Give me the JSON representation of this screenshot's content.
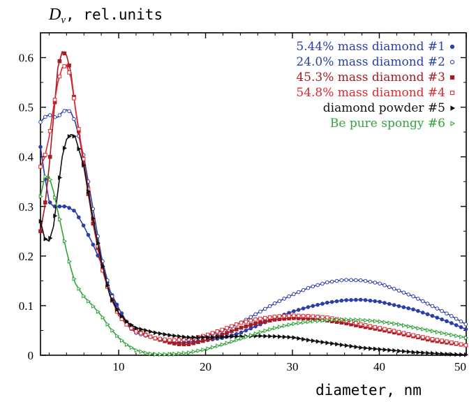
{
  "chart_data": {
    "type": "line",
    "y_var": "D",
    "y_var_sub": "v",
    "ylabel_rest": ", rel.units",
    "xlabel": "diameter, nm",
    "xlim": [
      1,
      50
    ],
    "ylim": [
      0,
      0.65
    ],
    "x_ticks": [
      10,
      20,
      30,
      40,
      50
    ],
    "y_ticks": [
      0,
      0.1,
      0.2,
      0.3,
      0.4,
      0.5,
      0.6
    ],
    "y_tick_labels": [
      "0",
      "0.1",
      "0.2",
      "0.3",
      "0.4",
      "0.5",
      "0.6"
    ],
    "legend_position": "top-right",
    "series": [
      {
        "name": "5.44% mass diamond #1",
        "color": "#2a3fa8",
        "marker": "filled-circle",
        "points": [
          [
            1,
            0.42
          ],
          [
            1.5,
            0.36
          ],
          [
            2,
            0.31
          ],
          [
            2.5,
            0.3
          ],
          [
            3,
            0.3
          ],
          [
            3.5,
            0.3
          ],
          [
            4,
            0.3
          ],
          [
            4.5,
            0.295
          ],
          [
            5,
            0.29
          ],
          [
            5.5,
            0.275
          ],
          [
            6,
            0.26
          ],
          [
            7,
            0.225
          ],
          [
            8,
            0.185
          ],
          [
            9,
            0.13
          ],
          [
            10,
            0.095
          ],
          [
            11,
            0.065
          ],
          [
            12,
            0.05
          ],
          [
            13,
            0.04
          ],
          [
            14,
            0.035
          ],
          [
            15,
            0.03
          ],
          [
            16,
            0.027
          ],
          [
            17,
            0.025
          ],
          [
            18,
            0.026
          ],
          [
            20,
            0.03
          ],
          [
            22,
            0.035
          ],
          [
            24,
            0.045
          ],
          [
            26,
            0.06
          ],
          [
            28,
            0.075
          ],
          [
            30,
            0.088
          ],
          [
            32,
            0.098
          ],
          [
            34,
            0.106
          ],
          [
            36,
            0.111
          ],
          [
            38,
            0.112
          ],
          [
            40,
            0.108
          ],
          [
            42,
            0.1
          ],
          [
            44,
            0.092
          ],
          [
            46,
            0.08
          ],
          [
            48,
            0.067
          ],
          [
            50,
            0.052
          ]
        ]
      },
      {
        "name": "24.0% mass diamond #2",
        "color": "#2a3fa8",
        "marker": "open-circle",
        "points": [
          [
            1,
            0.47
          ],
          [
            1.5,
            0.48
          ],
          [
            2,
            0.485
          ],
          [
            2.5,
            0.48
          ],
          [
            3,
            0.48
          ],
          [
            3.5,
            0.49
          ],
          [
            4,
            0.495
          ],
          [
            4.5,
            0.49
          ],
          [
            5,
            0.47
          ],
          [
            6,
            0.4
          ],
          [
            7,
            0.3
          ],
          [
            8,
            0.2
          ],
          [
            9,
            0.13
          ],
          [
            10,
            0.085
          ],
          [
            11,
            0.06
          ],
          [
            12,
            0.045
          ],
          [
            14,
            0.035
          ],
          [
            16,
            0.03
          ],
          [
            18,
            0.032
          ],
          [
            20,
            0.038
          ],
          [
            22,
            0.05
          ],
          [
            24,
            0.065
          ],
          [
            26,
            0.085
          ],
          [
            28,
            0.105
          ],
          [
            30,
            0.122
          ],
          [
            32,
            0.137
          ],
          [
            34,
            0.147
          ],
          [
            36,
            0.152
          ],
          [
            38,
            0.151
          ],
          [
            40,
            0.145
          ],
          [
            42,
            0.132
          ],
          [
            44,
            0.118
          ],
          [
            46,
            0.1
          ],
          [
            48,
            0.082
          ],
          [
            50,
            0.062
          ]
        ]
      },
      {
        "name": "45.3% mass diamond #3",
        "color": "#a51c24",
        "marker": "filled-square",
        "points": [
          [
            1,
            0.25
          ],
          [
            1.5,
            0.3
          ],
          [
            2,
            0.38
          ],
          [
            2.5,
            0.48
          ],
          [
            3,
            0.58
          ],
          [
            3.5,
            0.612
          ],
          [
            4,
            0.605
          ],
          [
            4.5,
            0.57
          ],
          [
            5,
            0.5
          ],
          [
            6,
            0.38
          ],
          [
            7,
            0.27
          ],
          [
            8,
            0.18
          ],
          [
            9,
            0.12
          ],
          [
            10,
            0.085
          ],
          [
            11,
            0.062
          ],
          [
            12,
            0.05
          ],
          [
            14,
            0.035
          ],
          [
            16,
            0.025
          ],
          [
            17,
            0.022
          ],
          [
            18,
            0.022
          ],
          [
            20,
            0.03
          ],
          [
            22,
            0.042
          ],
          [
            24,
            0.055
          ],
          [
            26,
            0.065
          ],
          [
            28,
            0.072
          ],
          [
            30,
            0.075
          ],
          [
            32,
            0.074
          ],
          [
            34,
            0.07
          ],
          [
            36,
            0.065
          ],
          [
            38,
            0.058
          ],
          [
            40,
            0.052
          ],
          [
            42,
            0.045
          ],
          [
            44,
            0.038
          ],
          [
            46,
            0.03
          ],
          [
            48,
            0.025
          ],
          [
            50,
            0.02
          ]
        ]
      },
      {
        "name": "54.8% mass diamond #4",
        "color": "#e0262f",
        "marker": "open-square",
        "points": [
          [
            1,
            0.38
          ],
          [
            1.5,
            0.4
          ],
          [
            2,
            0.44
          ],
          [
            2.5,
            0.5
          ],
          [
            3,
            0.55
          ],
          [
            3.5,
            0.58
          ],
          [
            4,
            0.585
          ],
          [
            4.5,
            0.56
          ],
          [
            5,
            0.5
          ],
          [
            6,
            0.39
          ],
          [
            7,
            0.28
          ],
          [
            8,
            0.18
          ],
          [
            9,
            0.12
          ],
          [
            10,
            0.08
          ],
          [
            11,
            0.06
          ],
          [
            12,
            0.048
          ],
          [
            14,
            0.035
          ],
          [
            16,
            0.03
          ],
          [
            18,
            0.032
          ],
          [
            20,
            0.04
          ],
          [
            22,
            0.052
          ],
          [
            24,
            0.065
          ],
          [
            26,
            0.073
          ],
          [
            28,
            0.078
          ],
          [
            30,
            0.08
          ],
          [
            32,
            0.079
          ],
          [
            34,
            0.076
          ],
          [
            36,
            0.07
          ],
          [
            38,
            0.062
          ],
          [
            40,
            0.055
          ],
          [
            42,
            0.048
          ],
          [
            44,
            0.04
          ],
          [
            46,
            0.033
          ],
          [
            48,
            0.027
          ],
          [
            50,
            0.02
          ]
        ]
      },
      {
        "name": "diamond powder #5",
        "color": "#111111",
        "marker": "filled-triangle",
        "points": [
          [
            1,
            0.27
          ],
          [
            1.5,
            0.235
          ],
          [
            2,
            0.23
          ],
          [
            2.5,
            0.26
          ],
          [
            3,
            0.33
          ],
          [
            3.5,
            0.4
          ],
          [
            4,
            0.435
          ],
          [
            4.5,
            0.445
          ],
          [
            5,
            0.44
          ],
          [
            6,
            0.38
          ],
          [
            7,
            0.28
          ],
          [
            8,
            0.19
          ],
          [
            9,
            0.12
          ],
          [
            10,
            0.085
          ],
          [
            11,
            0.066
          ],
          [
            12,
            0.055
          ],
          [
            14,
            0.046
          ],
          [
            16,
            0.04
          ],
          [
            18,
            0.036
          ],
          [
            20,
            0.036
          ],
          [
            22,
            0.037
          ],
          [
            24,
            0.038
          ],
          [
            26,
            0.039
          ],
          [
            28,
            0.038
          ],
          [
            30,
            0.036
          ],
          [
            32,
            0.03
          ],
          [
            34,
            0.025
          ],
          [
            36,
            0.02
          ],
          [
            38,
            0.015
          ],
          [
            40,
            0.012
          ],
          [
            42,
            0.009
          ],
          [
            44,
            0.006
          ],
          [
            46,
            0.004
          ],
          [
            48,
            0.002
          ],
          [
            50,
            0.001
          ]
        ]
      },
      {
        "name": "Be pure spongy #6",
        "color": "#33a33c",
        "marker": "open-triangle",
        "points": [
          [
            1,
            0.32
          ],
          [
            1.5,
            0.36
          ],
          [
            2,
            0.36
          ],
          [
            2.5,
            0.33
          ],
          [
            3,
            0.29
          ],
          [
            3.5,
            0.25
          ],
          [
            4,
            0.21
          ],
          [
            4.5,
            0.175
          ],
          [
            5,
            0.145
          ],
          [
            6,
            0.118
          ],
          [
            7,
            0.1
          ],
          [
            8,
            0.08
          ],
          [
            9,
            0.055
          ],
          [
            10,
            0.035
          ],
          [
            11,
            0.02
          ],
          [
            12,
            0.01
          ],
          [
            13,
            0.005
          ],
          [
            14,
            0.002
          ],
          [
            16,
            0.002
          ],
          [
            18,
            0.005
          ],
          [
            20,
            0.012
          ],
          [
            22,
            0.022
          ],
          [
            24,
            0.033
          ],
          [
            26,
            0.045
          ],
          [
            28,
            0.055
          ],
          [
            30,
            0.063
          ],
          [
            32,
            0.068
          ],
          [
            34,
            0.071
          ],
          [
            36,
            0.072
          ],
          [
            38,
            0.071
          ],
          [
            40,
            0.068
          ],
          [
            42,
            0.063
          ],
          [
            44,
            0.056
          ],
          [
            46,
            0.049
          ],
          [
            48,
            0.042
          ],
          [
            50,
            0.035
          ]
        ]
      }
    ]
  }
}
